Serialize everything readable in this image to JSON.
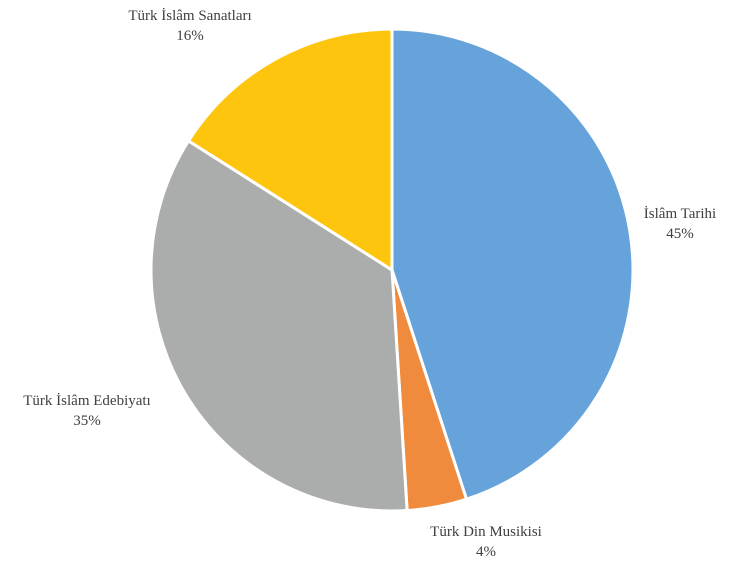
{
  "chart_data": {
    "type": "pie",
    "title": "",
    "legend": "none",
    "slices": [
      {
        "name": "İslâm Tarihi",
        "value": 45,
        "percent_label": "45%",
        "color": "#66A3DA"
      },
      {
        "name": "Türk Din Musikisi",
        "value": 4,
        "percent_label": "4%",
        "color": "#F08A3C"
      },
      {
        "name": "Türk İslâm Edebiyatı",
        "value": 35,
        "percent_label": "35%",
        "color": "#ABADAC"
      },
      {
        "name": "Türk İslâm Sanatları",
        "value": 16,
        "percent_label": "16%",
        "color": "#FDC50D"
      }
    ],
    "slice_border_color": "#FFFFFF"
  }
}
